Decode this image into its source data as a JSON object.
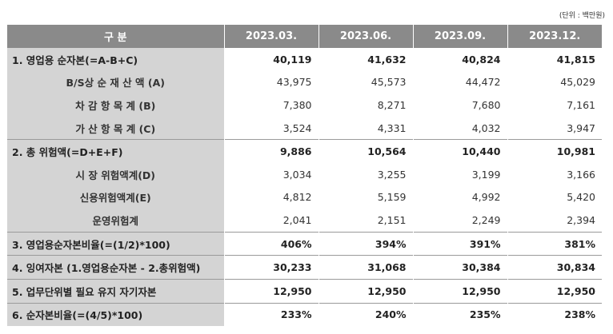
{
  "unit_note": "(단위 : 백만원)",
  "header": {
    "category": "구 분",
    "periods": [
      "2023.03.",
      "2023.06.",
      "2023.09.",
      "2023.12."
    ]
  },
  "rows": [
    {
      "label": "1. 영업용 순자본(=A-B+C)",
      "values": [
        "40,119",
        "41,632",
        "40,824",
        "41,815"
      ],
      "level": "main"
    },
    {
      "label": "B/S상 순 재 산 액 (A)",
      "values": [
        "43,975",
        "45,573",
        "44,472",
        "45,029"
      ],
      "level": "sub"
    },
    {
      "label": "차 감 항 목 계 (B)",
      "values": [
        "7,380",
        "8,271",
        "7,680",
        "7,161"
      ],
      "level": "sub"
    },
    {
      "label": "가 산 항 목 계 (C)",
      "values": [
        "3,524",
        "4,331",
        "4,032",
        "3,947"
      ],
      "level": "sub"
    },
    {
      "label": "2. 총 위험액(=D+E+F)",
      "values": [
        "9,886",
        "10,564",
        "10,440",
        "10,981"
      ],
      "level": "main"
    },
    {
      "label": "시 장 위험액계(D)",
      "values": [
        "3,034",
        "3,255",
        "3,199",
        "3,166"
      ],
      "level": "sub"
    },
    {
      "label": "신용위험액계(E)",
      "values": [
        "4,812",
        "5,159",
        "4,992",
        "5,420"
      ],
      "level": "sub"
    },
    {
      "label": "운영위험계",
      "values": [
        "2,041",
        "2,151",
        "2,249",
        "2,394"
      ],
      "level": "sub"
    },
    {
      "label": "3. 영업용순자본비율(=(1/2)*100)",
      "values": [
        "406%",
        "394%",
        "391%",
        "381%"
      ],
      "level": "main"
    },
    {
      "label": "4. 잉여자본 (1.영업용순자본 - 2.총위험액)",
      "values": [
        "30,233",
        "31,068",
        "30,384",
        "30,834"
      ],
      "level": "main"
    },
    {
      "label": "5. 업무단위별 필요 유지 자기자본",
      "values": [
        "12,950",
        "12,950",
        "12,950",
        "12,950"
      ],
      "level": "main"
    },
    {
      "label": "6. 순자본비율(=(4/5)*100)",
      "values": [
        "233%",
        "240%",
        "235%",
        "238%"
      ],
      "level": "main"
    }
  ]
}
